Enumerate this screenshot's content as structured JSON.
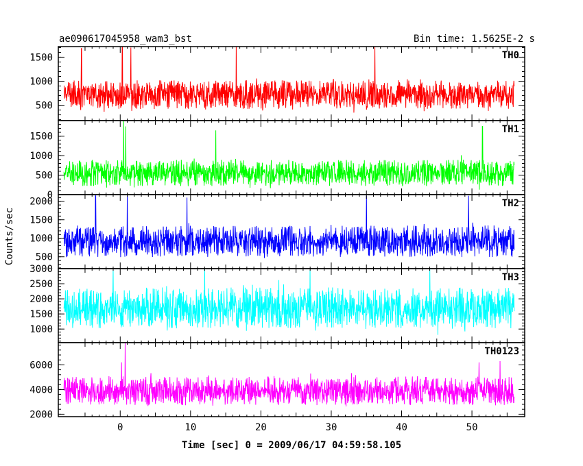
{
  "header": {
    "title": "ae090617045958_wam3_bst",
    "bin_time": "Bin time: 1.5625E-2 s"
  },
  "chart_data": {
    "type": "line",
    "xlabel": "Time [sec] 0 = 2009/06/17 04:59:58.105",
    "ylabel": "Counts/sec",
    "xlim": [
      -8.8,
      57.5
    ],
    "x_ticks": [
      0,
      10,
      20,
      30,
      40,
      50
    ],
    "x_range_data": [
      -8,
      56
    ],
    "grid": false,
    "panels": [
      {
        "name": "TH0",
        "color": "#ff0000",
        "ylim": [
          180,
          1720
        ],
        "yticks": [
          500,
          1000,
          1500
        ],
        "mean": 720,
        "spread": 230,
        "spikes": [
          [
            0.3,
            1750
          ],
          [
            1.5,
            1700
          ],
          [
            16.5,
            1720
          ],
          [
            36.2,
            1720
          ],
          [
            -5.5,
            1680
          ]
        ]
      },
      {
        "name": "TH1",
        "color": "#00ff00",
        "ylim": [
          0,
          1900
        ],
        "yticks": [
          0,
          500,
          1000,
          1500
        ],
        "mean": 560,
        "spread": 260,
        "spikes": [
          [
            0.5,
            1900
          ],
          [
            0.8,
            1750
          ],
          [
            13.6,
            1650
          ],
          [
            51.5,
            1750
          ]
        ]
      },
      {
        "name": "TH2",
        "color": "#0000ff",
        "ylim": [
          180,
          2180
        ],
        "yticks": [
          500,
          1000,
          1500,
          2000
        ],
        "mean": 920,
        "spread": 330,
        "spikes": [
          [
            -3.5,
            2150
          ],
          [
            1.0,
            2180
          ],
          [
            9.5,
            2100
          ],
          [
            35.0,
            2150
          ],
          [
            49.5,
            2150
          ]
        ]
      },
      {
        "name": "TH3",
        "color": "#00ffff",
        "ylim": [
          550,
          3000
        ],
        "yticks": [
          1000,
          1500,
          2000,
          2500,
          3000
        ],
        "mean": 1700,
        "spread": 520,
        "spikes": [
          [
            -1.0,
            2950
          ],
          [
            12.0,
            3000
          ],
          [
            27.0,
            2950
          ],
          [
            44.0,
            3000
          ]
        ]
      },
      {
        "name": "TH0123",
        "color": "#ff00ff",
        "ylim": [
          1800,
          7800
        ],
        "yticks": [
          2000,
          4000,
          6000
        ],
        "mean": 3900,
        "spread": 900,
        "spikes": [
          [
            0.7,
            7800
          ],
          [
            0.2,
            6200
          ],
          [
            51.0,
            6200
          ],
          [
            54.0,
            6300
          ]
        ]
      }
    ]
  }
}
